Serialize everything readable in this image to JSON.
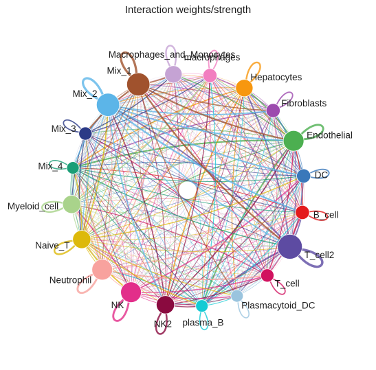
{
  "chart_data": {
    "type": "network",
    "title": "Interaction weights/strength",
    "layout": "circle",
    "edges": "all-to-all",
    "nodes": [
      {
        "name": "Macrophages_and_Monocytes",
        "color": "#C5A3D4",
        "weight": 0.55
      },
      {
        "name": "macrophages",
        "color": "#F27EC0",
        "weight": 0.35
      },
      {
        "name": "Hepatocytes",
        "color": "#F7970F",
        "weight": 0.55
      },
      {
        "name": "Fibroblasts",
        "color": "#9C4AAE",
        "weight": 0.35
      },
      {
        "name": "Endothelial",
        "color": "#4CAF50",
        "weight": 0.75
      },
      {
        "name": "DC",
        "color": "#3A78BA",
        "weight": 0.35
      },
      {
        "name": "B_cell",
        "color": "#E41A1C",
        "weight": 0.35
      },
      {
        "name": "T_cell2",
        "color": "#5D4BA2",
        "weight": 1.0
      },
      {
        "name": "T_cell",
        "color": "#D1125F",
        "weight": 0.3
      },
      {
        "name": "Plasmacytoid_DC",
        "color": "#9AC4DE",
        "weight": 0.25
      },
      {
        "name": "plasma_B",
        "color": "#14CBD4",
        "weight": 0.25
      },
      {
        "name": "NK2",
        "color": "#8A0A3F",
        "weight": 0.6
      },
      {
        "name": "NK",
        "color": "#E22E8A",
        "weight": 0.75
      },
      {
        "name": "Neutrophil",
        "color": "#F8A29E",
        "weight": 0.75
      },
      {
        "name": "Naive_T",
        "color": "#DDB90A",
        "weight": 0.6
      },
      {
        "name": "Myeloid_cell",
        "color": "#A9D38B",
        "weight": 0.6
      },
      {
        "name": "Mix_4",
        "color": "#1B9E77",
        "weight": 0.25
      },
      {
        "name": "Mix_3",
        "color": "#2B3A86",
        "weight": 0.3
      },
      {
        "name": "Mix_2",
        "color": "#5CB5E8",
        "weight": 0.9
      },
      {
        "name": "Mix_1",
        "color": "#A0522D",
        "weight": 0.9
      }
    ]
  }
}
